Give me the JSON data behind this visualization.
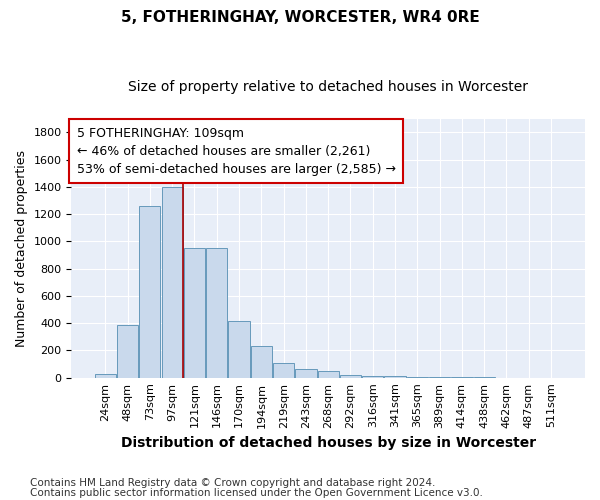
{
  "title": "5, FOTHERINGHAY, WORCESTER, WR4 0RE",
  "subtitle": "Size of property relative to detached houses in Worcester",
  "xlabel": "Distribution of detached houses by size in Worcester",
  "ylabel": "Number of detached properties",
  "categories": [
    "24sqm",
    "48sqm",
    "73sqm",
    "97sqm",
    "121sqm",
    "146sqm",
    "170sqm",
    "194sqm",
    "219sqm",
    "243sqm",
    "268sqm",
    "292sqm",
    "316sqm",
    "341sqm",
    "365sqm",
    "389sqm",
    "414sqm",
    "438sqm",
    "462sqm",
    "487sqm",
    "511sqm"
  ],
  "values": [
    25,
    385,
    1260,
    1400,
    950,
    950,
    415,
    235,
    110,
    65,
    50,
    20,
    15,
    10,
    5,
    3,
    2,
    2,
    1,
    1,
    1
  ],
  "bar_color": "#c9d9ec",
  "bar_edge_color": "#6699bb",
  "vline_color": "#aa0000",
  "annotation_line1": "5 FOTHERINGHAY: 109sqm",
  "annotation_line2": "← 46% of detached houses are smaller (2,261)",
  "annotation_line3": "53% of semi-detached houses are larger (2,585) →",
  "annotation_box_color": "#ffffff",
  "annotation_box_edge": "#cc0000",
  "ylim": [
    0,
    1900
  ],
  "yticks": [
    0,
    200,
    400,
    600,
    800,
    1000,
    1200,
    1400,
    1600,
    1800
  ],
  "footer_line1": "Contains HM Land Registry data © Crown copyright and database right 2024.",
  "footer_line2": "Contains public sector information licensed under the Open Government Licence v3.0.",
  "fig_bg_color": "#ffffff",
  "plot_bg_color": "#e8eef8",
  "title_fontsize": 11,
  "subtitle_fontsize": 10,
  "xlabel_fontsize": 10,
  "ylabel_fontsize": 9,
  "tick_fontsize": 8,
  "annotation_fontsize": 9,
  "footer_fontsize": 7.5
}
